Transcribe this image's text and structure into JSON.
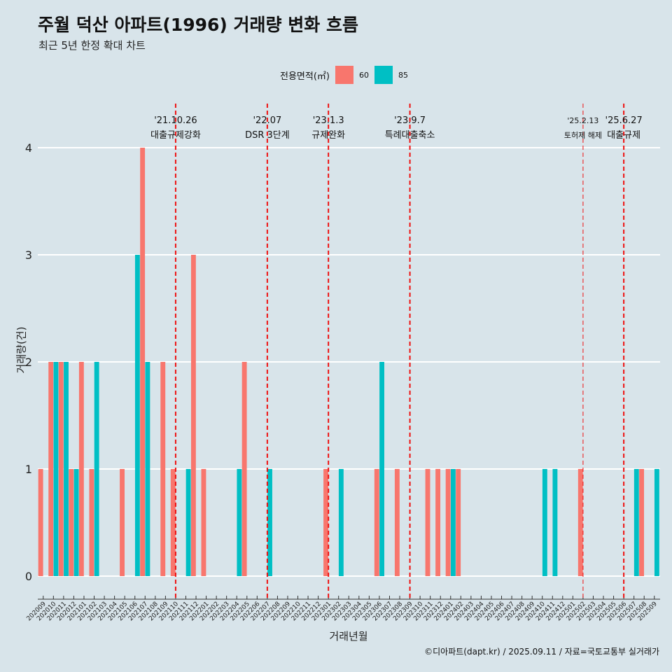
{
  "title": "주월 덕산 아파트(1996) 거래량 변화 흐름",
  "subtitle": "최근 5년 한정 확대 차트",
  "caption": "©디아파트(dapt.kr) / 2025.09.11 / 자료=국토교통부 실거래가",
  "legend": {
    "title": "전용면적(㎡)",
    "items": [
      {
        "label": "60",
        "color": "#f8766d"
      },
      {
        "label": "85",
        "color": "#00bfc4"
      }
    ]
  },
  "chart_data": {
    "type": "bar",
    "xlabel": "거래년월",
    "ylabel": "거래량(건)",
    "ylim": [
      0,
      4
    ],
    "yticks": [
      0,
      1,
      2,
      3,
      4
    ],
    "categories": [
      "202009",
      "202010",
      "202011",
      "202012",
      "202101",
      "202102",
      "202103",
      "202104",
      "202105",
      "202106",
      "202107",
      "202108",
      "202109",
      "202110",
      "202111",
      "202112",
      "202201",
      "202202",
      "202203",
      "202204",
      "202205",
      "202206",
      "202207",
      "202208",
      "202209",
      "202210",
      "202211",
      "202212",
      "202301",
      "202302",
      "202303",
      "202304",
      "202305",
      "202306",
      "202307",
      "202308",
      "202309",
      "202310",
      "202311",
      "202312",
      "202401",
      "202402",
      "202403",
      "202404",
      "202405",
      "202406",
      "202407",
      "202408",
      "202409",
      "202410",
      "202411",
      "202412",
      "202501",
      "202502",
      "202503",
      "202504",
      "202505",
      "202506",
      "202507",
      "202508",
      "202509"
    ],
    "series": [
      {
        "name": "60",
        "color": "#f8766d",
        "values": [
          1,
          2,
          2,
          1,
          2,
          1,
          0,
          0,
          1,
          0,
          4,
          0,
          2,
          1,
          0,
          3,
          1,
          0,
          0,
          0,
          2,
          0,
          0,
          0,
          0,
          0,
          0,
          0,
          1,
          0,
          0,
          0,
          0,
          1,
          0,
          1,
          0,
          0,
          1,
          1,
          1,
          1,
          0,
          0,
          0,
          0,
          0,
          0,
          0,
          0,
          0,
          0,
          0,
          1,
          0,
          0,
          0,
          0,
          0,
          1,
          0
        ]
      },
      {
        "name": "85",
        "color": "#00bfc4",
        "values": [
          0,
          2,
          2,
          1,
          0,
          2,
          0,
          0,
          0,
          3,
          2,
          0,
          0,
          0,
          1,
          0,
          0,
          0,
          0,
          1,
          0,
          0,
          1,
          0,
          0,
          0,
          0,
          0,
          0,
          1,
          0,
          0,
          0,
          2,
          0,
          0,
          0,
          0,
          0,
          0,
          1,
          0,
          0,
          0,
          0,
          0,
          0,
          0,
          0,
          1,
          1,
          0,
          0,
          0,
          0,
          0,
          0,
          0,
          1,
          0,
          1
        ]
      }
    ],
    "events": [
      {
        "date": "'21.10.26",
        "label": "대출규제강화",
        "category": "202110"
      },
      {
        "date": "'22.07",
        "label": "DSR 3단계",
        "category": "202207"
      },
      {
        "date": "'23.1.3",
        "label": "규제완화",
        "category": "202301"
      },
      {
        "date": "'23.9.7",
        "label": "특례대출축소",
        "category": "202309"
      },
      {
        "date": "'25.2.13",
        "label": "토허제 해제",
        "category": "202502"
      },
      {
        "date": "'25.6.27",
        "label": "대출규제",
        "category": "202506"
      }
    ],
    "grid": true,
    "legend_position": "top"
  }
}
